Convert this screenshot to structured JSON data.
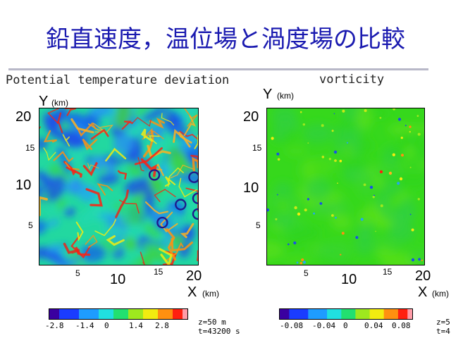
{
  "slide": {
    "title": "鉛直速度，温位場と渦度場の比較"
  },
  "panels": {
    "left": {
      "title": "Potential temperature deviation",
      "y_axis_letter": "Y",
      "y_axis_unit": "(km)",
      "x_axis_letter": "X",
      "x_axis_unit": "(km)",
      "big_ticks": {
        "y20": "20",
        "y10": "10",
        "x10": "10",
        "x20": "20"
      },
      "small_ticks": {
        "y15": "15",
        "y5": "5",
        "x5": "5",
        "x15": "15"
      },
      "colorbar_labels": [
        "-2.8",
        "-1.4",
        "0",
        "1.4",
        "2.8"
      ],
      "info": [
        "z=50 m",
        "t=43200 s"
      ]
    },
    "right": {
      "title": "vorticity",
      "y_axis_letter": "Y",
      "y_axis_unit": "(km)",
      "x_axis_letter": "X",
      "x_axis_unit": "(km)",
      "big_ticks": {
        "y20": "20",
        "y10": "10",
        "x10": "10",
        "x20": "20"
      },
      "small_ticks": {
        "y15": "15",
        "y5": "5",
        "x5": "5",
        "x15": "15"
      },
      "colorbar_labels": [
        "-0.08",
        "-0.04",
        "0",
        "0.04",
        "0.08"
      ],
      "info": [
        "z=5",
        "t=4"
      ]
    }
  },
  "chart_data": [
    {
      "type": "heatmap",
      "title": "Potential temperature deviation",
      "xlabel": "X (km)",
      "ylabel": "Y (km)",
      "xlim": [
        0,
        20
      ],
      "ylim": [
        0,
        20
      ],
      "colorbar": {
        "ticks": [
          -2.8,
          -1.4,
          0,
          1.4,
          2.8
        ]
      },
      "annotations": {
        "type": "circles",
        "centers_km": [
          [
            14.5,
            11.5
          ],
          [
            19.5,
            11.2
          ],
          [
            20.0,
            8.5
          ],
          [
            17.8,
            7.7
          ],
          [
            20.0,
            6.5
          ],
          [
            15.5,
            5.4
          ]
        ]
      }
    },
    {
      "type": "heatmap",
      "title": "vorticity",
      "xlabel": "X (km)",
      "ylabel": "Y (km)",
      "xlim": [
        0,
        20
      ],
      "ylim": [
        0,
        20
      ],
      "colorbar": {
        "ticks": [
          -0.08,
          -0.04,
          0,
          0.04,
          0.08
        ]
      }
    }
  ],
  "colors": {
    "title": "#1a1ab0",
    "rule": "#b8b8c8",
    "field_low": "#1a57e6",
    "field_mid": "#2fd400",
    "field_high": "#e8261a",
    "circle": "#1e1a8c"
  }
}
